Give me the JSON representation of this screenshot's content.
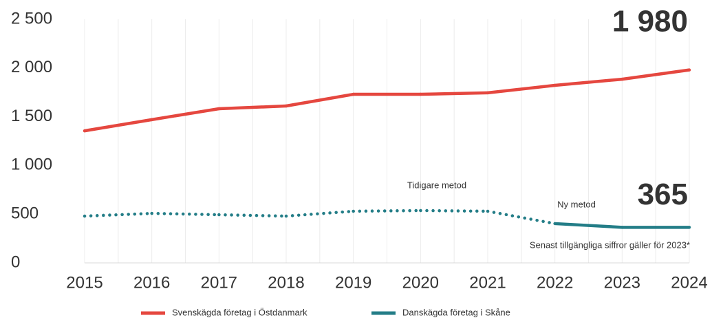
{
  "chart_data": {
    "type": "line",
    "categories": [
      "2015",
      "2016",
      "2017",
      "2018",
      "2019",
      "2020",
      "2021",
      "2022",
      "2023",
      "2024"
    ],
    "series": [
      {
        "name": "Svenskägda företag i Östdanmark",
        "color": "#e5473f",
        "values": [
          1355,
          1470,
          1582,
          1610,
          1730,
          1730,
          1745,
          1822,
          1885,
          1980
        ],
        "value_labels": [
          null,
          null,
          null,
          null,
          null,
          null,
          null,
          null,
          null,
          "1 980"
        ]
      },
      {
        "name": "Danskägda företag i Skåne",
        "color": "#237d87",
        "values": [
          480,
          508,
          494,
          480,
          530,
          537,
          530,
          403,
          365,
          365
        ],
        "dash": [
          "dotted",
          "dotted",
          "dotted",
          "dotted",
          "dotted",
          "dotted",
          "dotted",
          "solid",
          "solid",
          "solid"
        ],
        "value_labels": [
          null,
          null,
          null,
          null,
          null,
          null,
          null,
          null,
          null,
          "365"
        ]
      }
    ],
    "ylim": [
      0,
      2500
    ],
    "yticks": [
      0,
      500,
      {
        "value": 1000,
        "label": "1 000"
      },
      {
        "value": 1500,
        "label": "1 500"
      },
      {
        "value": 2000,
        "label": "2 000"
      },
      {
        "value": 2500,
        "label": "2 500"
      }
    ],
    "grid": "x",
    "annotations": [
      "Tidigare metod",
      "Ny metod",
      "Senast tillgängliga siffror gäller för 2023*"
    ],
    "legend": "bottom"
  }
}
